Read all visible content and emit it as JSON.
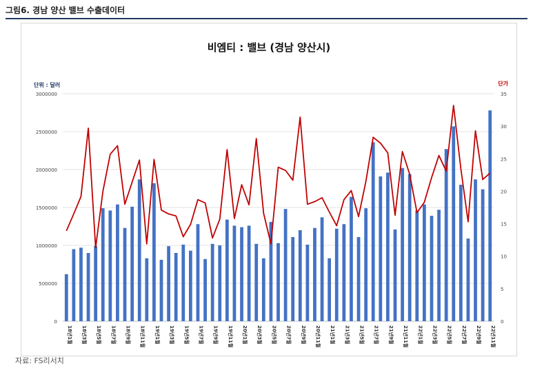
{
  "figure": {
    "title": "그림6. 경남 양산 밸브 수출데이터",
    "source": "자료: FS리서치"
  },
  "colors": {
    "bar": "#4472c4",
    "line": "#c00000",
    "left_unit": "#1f3864",
    "right_unit": "#c00000"
  },
  "chart_data": {
    "type": "bar",
    "title": "비엠티 : 밸브 (경남 양산시)",
    "left_axis": {
      "label": "단위 : 달러",
      "ylim": [
        0,
        3000000
      ],
      "ticks": [
        0,
        500000,
        1000000,
        1500000,
        2000000,
        2500000,
        3000000
      ]
    },
    "right_axis": {
      "label": "단가",
      "ylim": [
        0,
        35
      ],
      "ticks": [
        0,
        5,
        10,
        15,
        20,
        25,
        30,
        35
      ]
    },
    "categories": [
      "18년1월",
      "18년2월",
      "18년3월",
      "18년4월",
      "18년5월",
      "18년6월",
      "18년7월",
      "18년8월",
      "18년9월",
      "18년10월",
      "18년11월",
      "18년12월",
      "19년1월",
      "19년2월",
      "19년3월",
      "19년4월",
      "19년5월",
      "19년6월",
      "19년7월",
      "19년8월",
      "19년9월",
      "19년10월",
      "19년11월",
      "19년12월",
      "20년1월",
      "20년2월",
      "20년3월",
      "20년4월",
      "20년5월",
      "20년6월",
      "20년7월",
      "20년8월",
      "20년9월",
      "20년10월",
      "20년11월",
      "20년12월",
      "21년1월",
      "21년2월",
      "21년3월",
      "21년4월",
      "21년5월",
      "21년6월",
      "21년7월",
      "21년8월",
      "21년9월",
      "21년10월",
      "21년11월",
      "21년12월",
      "22년1월",
      "22년2월",
      "22년3월",
      "22년4월",
      "22년5월",
      "22년6월",
      "22년7월",
      "22년8월",
      "22년9월",
      "22년10월",
      "22년11월"
    ],
    "tick_labels": [
      "18년1월",
      "18년3월",
      "18년5월",
      "18년7월",
      "18년9월",
      "18년11월",
      "19년1월",
      "19년3월",
      "19년5월",
      "19년7월",
      "19년9월",
      "19년11월",
      "20년1월",
      "20년3월",
      "20년5월",
      "20년7월",
      "20년9월",
      "20년11월",
      "21년1월",
      "21년3월",
      "21년5월",
      "21년7월",
      "21년9월",
      "21년11월",
      "22년1월",
      "22년3월",
      "22년5월",
      "22년7월",
      "22년9월",
      "22년11월"
    ],
    "series": [
      {
        "type": "bar",
        "axis": "left",
        "values": [
          620000,
          950000,
          970000,
          900000,
          990000,
          1490000,
          1460000,
          1540000,
          1230000,
          1510000,
          1870000,
          830000,
          1820000,
          810000,
          990000,
          900000,
          1010000,
          930000,
          1280000,
          820000,
          1020000,
          1000000,
          1340000,
          1260000,
          1240000,
          1260000,
          1020000,
          830000,
          1310000,
          1030000,
          1480000,
          1110000,
          1200000,
          1010000,
          1230000,
          1370000,
          830000,
          1220000,
          1280000,
          1640000,
          1110000,
          1490000,
          2360000,
          1910000,
          1960000,
          1210000,
          2020000,
          1940000,
          1460000,
          1540000,
          1390000,
          1470000,
          2270000,
          2570000,
          1800000,
          1090000,
          1870000,
          1740000,
          2780000
        ]
      },
      {
        "type": "line",
        "axis": "right",
        "values": [
          13.9,
          16.5,
          19.2,
          29.7,
          11.3,
          20.0,
          25.7,
          27.0,
          18.0,
          21.4,
          24.8,
          11.9,
          24.9,
          17.1,
          16.5,
          16.2,
          13.0,
          14.9,
          18.7,
          18.2,
          12.8,
          15.7,
          26.4,
          15.8,
          21.0,
          17.9,
          28.1,
          16.6,
          11.9,
          23.7,
          23.2,
          21.7,
          31.4,
          18.0,
          18.4,
          19.0,
          16.8,
          14.7,
          18.7,
          20.1,
          16.1,
          21.5,
          28.3,
          27.4,
          25.9,
          16.3,
          26.1,
          22.6,
          16.7,
          18.3,
          22.1,
          25.5,
          23.1,
          33.2,
          23.5,
          15.3,
          29.3,
          21.8,
          22.8
        ]
      }
    ],
    "grid": "horizontal",
    "legend": "none"
  }
}
